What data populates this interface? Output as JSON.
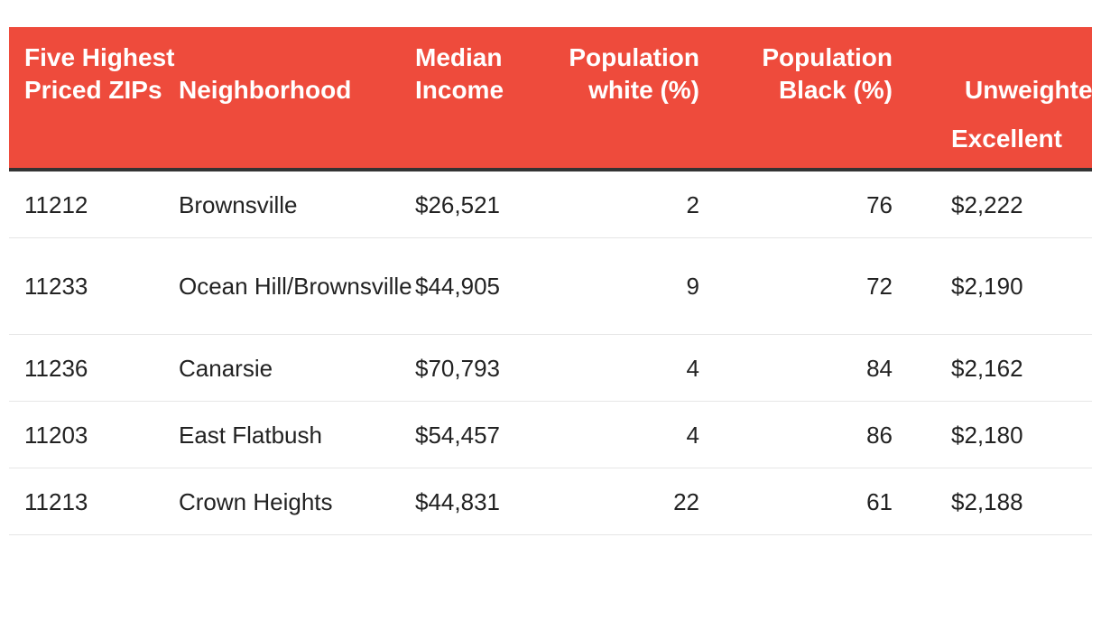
{
  "table": {
    "headers": {
      "zip": "Five Highest Priced ZIPs",
      "neighborhood": "Neighborhood",
      "median_income": "Median Income",
      "pop_white": "Population white (%)",
      "pop_black": "Population Black (%)",
      "score": "Unweighted Score",
      "score_sub": "Excellent"
    },
    "rows": [
      {
        "zip": "11212",
        "neighborhood": "Brownsville",
        "median_income": "$26,521",
        "pop_white": "2",
        "pop_black": "76",
        "score": "$2,222"
      },
      {
        "zip": "11233",
        "neighborhood": "Ocean Hill/Brownsville",
        "median_income": "$44,905",
        "pop_white": "9",
        "pop_black": "72",
        "score": "$2,190"
      },
      {
        "zip": "11236",
        "neighborhood": "Canarsie",
        "median_income": "$70,793",
        "pop_white": "4",
        "pop_black": "84",
        "score": "$2,162"
      },
      {
        "zip": "11203",
        "neighborhood": "East Flatbush",
        "median_income": "$54,457",
        "pop_white": "4",
        "pop_black": "86",
        "score": "$2,180"
      },
      {
        "zip": "11213",
        "neighborhood": "Crown Heights",
        "median_income": "$44,831",
        "pop_white": "22",
        "pop_black": "61",
        "score": "$2,188"
      }
    ]
  },
  "colors": {
    "header_bg": "#ee4b3c",
    "header_text": "#ffffff",
    "header_rule": "#333333",
    "row_divider": "#e6e6e6"
  }
}
